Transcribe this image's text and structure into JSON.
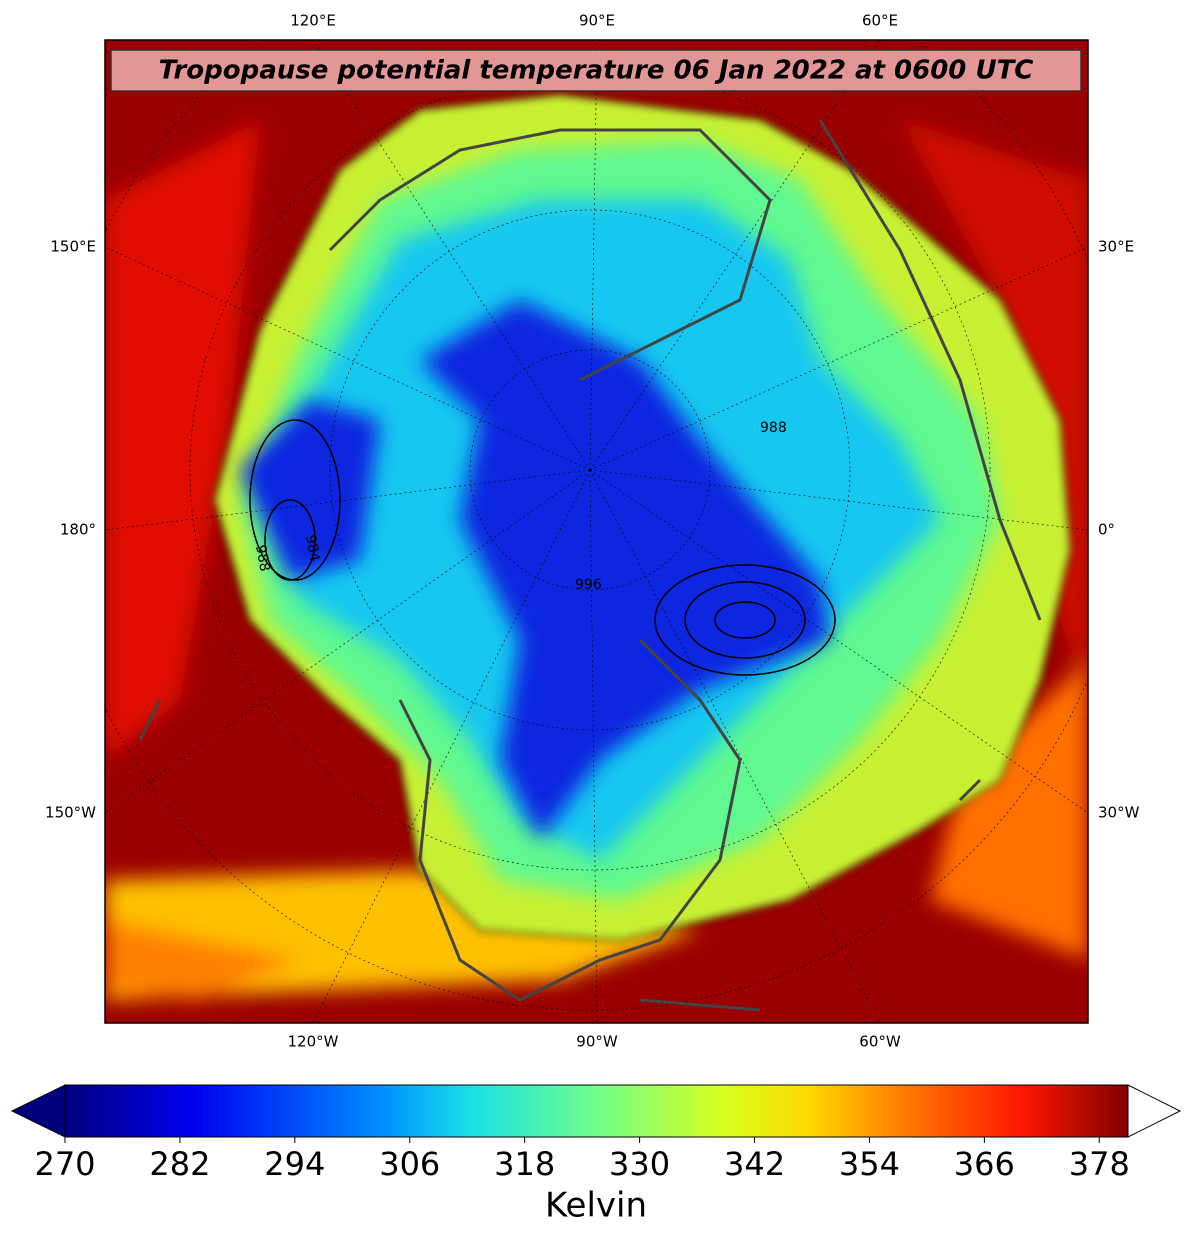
{
  "map": {
    "title": "Tropopause potential temperature 06 Jan 2022 at 0600 UTC",
    "top_labels": [
      "120°E",
      "90°E",
      "60°E"
    ],
    "bottom_labels": [
      "120°W",
      "90°W",
      "60°W"
    ],
    "left_labels": [
      "150°E",
      "180°",
      "150°W"
    ],
    "right_labels": [
      "30°E",
      "0°",
      "30°W"
    ],
    "contour_labels": [
      "984",
      "988",
      "988",
      "996"
    ]
  },
  "colorbar": {
    "range": [
      270,
      381
    ],
    "ticks": [
      270,
      282,
      294,
      306,
      318,
      330,
      342,
      354,
      366,
      378
    ],
    "label": "Kelvin"
  }
}
